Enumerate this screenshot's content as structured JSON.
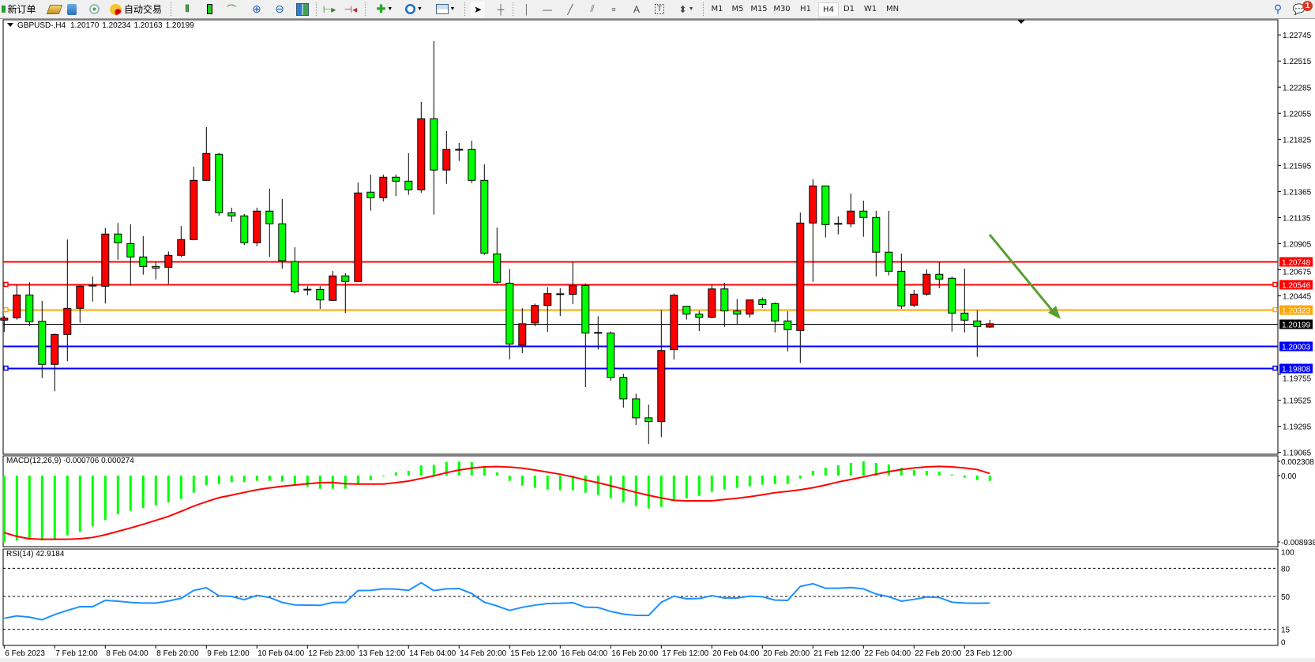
{
  "toolbar": {
    "new_order_label": "新订单",
    "auto_trading_label": "自动交易",
    "icons": [
      "new-order-icon",
      "history-center-icon",
      "market-watch-icon",
      "signals-icon",
      "auto-trading-icon",
      "bar-chart-icon",
      "candlestick-icon",
      "line-chart-icon",
      "zoom-in-icon",
      "zoom-out-icon",
      "tile-windows-icon",
      "auto-scroll-icon",
      "chart-shift-icon",
      "indicators-icon",
      "periods-icon",
      "templates-icon",
      "cursor-icon",
      "crosshair-icon",
      "vertical-line-icon",
      "horizontal-line-icon",
      "trendline-icon",
      "equidistant-channel-icon",
      "fibonacci-icon",
      "text-icon",
      "text-label-icon",
      "shapes-icon",
      "search-icon",
      "notifications-icon"
    ],
    "timeframes": [
      "M1",
      "M5",
      "M15",
      "M30",
      "H1",
      "H4",
      "D1",
      "W1",
      "MN"
    ],
    "active_timeframe": "H4",
    "notification_count": "1",
    "text_tool_label": "A",
    "label_tool_label": "T"
  },
  "chart_header": {
    "symbol": "GBPUSD-,H4",
    "open": "1.20170",
    "high": "1.20234",
    "low": "1.20163",
    "close": "1.20199"
  },
  "colors": {
    "bull": "#ff0000",
    "bear": "#00ff00",
    "macd_hist": "#00ff00",
    "macd_signal": "#ff0000",
    "rsi": "#1e90ff",
    "arrow": "#5a9e32"
  },
  "chart_data": {
    "type": "candlestick",
    "price_ticks": [
      "1.22745",
      "1.22515",
      "1.22285",
      "1.22055",
      "1.21825",
      "1.21595",
      "1.21365",
      "1.21135",
      "1.20905",
      "1.20675",
      "1.20445",
      "1.19755",
      "1.19525",
      "1.19295",
      "1.19065"
    ],
    "time_labels": [
      "6 Feb 2023",
      "7 Feb 12:00",
      "8 Feb 04:00",
      "8 Feb 20:00",
      "9 Feb 12:00",
      "10 Feb 04:00",
      "12 Feb 23:00",
      "13 Feb 12:00",
      "14 Feb 04:00",
      "14 Feb 20:00",
      "15 Feb 12:00",
      "16 Feb 04:00",
      "16 Feb 20:00",
      "17 Feb 12:00",
      "20 Feb 04:00",
      "20 Feb 20:00",
      "21 Feb 12:00",
      "22 Feb 04:00",
      "22 Feb 20:00",
      "23 Feb 12:00"
    ],
    "ohlc": [
      [
        1.20231,
        1.20268,
        1.20128,
        1.20249
      ],
      [
        1.20252,
        1.20541,
        1.20235,
        1.20453
      ],
      [
        1.20453,
        1.20565,
        1.20179,
        1.20217
      ],
      [
        1.20221,
        1.204,
        1.1972,
        1.19841
      ],
      [
        1.19841,
        1.20112,
        1.19604,
        1.20105
      ],
      [
        1.20105,
        1.20941,
        1.19869,
        1.20335
      ],
      [
        1.20335,
        1.20539,
        1.20207,
        1.2053
      ],
      [
        1.20535,
        1.20616,
        1.20395,
        1.20535
      ],
      [
        1.2053,
        1.21045,
        1.20377,
        1.2099
      ],
      [
        1.2099,
        1.21087,
        1.20764,
        1.20913
      ],
      [
        1.20906,
        1.21075,
        1.20534,
        1.20788
      ],
      [
        1.20788,
        1.20971,
        1.20632,
        1.20704
      ],
      [
        1.20704,
        1.20741,
        1.2059,
        1.2069
      ],
      [
        1.20697,
        1.20836,
        1.20551,
        1.20802
      ],
      [
        1.20802,
        1.21061,
        1.20785,
        1.20941
      ],
      [
        1.20941,
        1.21584,
        1.20935,
        1.21463
      ],
      [
        1.21463,
        1.21932,
        1.21456,
        1.217
      ],
      [
        1.21693,
        1.21705,
        1.2115,
        1.21178
      ],
      [
        1.21178,
        1.21222,
        1.21098,
        1.2115
      ],
      [
        1.2115,
        1.21166,
        1.20892,
        1.20913
      ],
      [
        1.20913,
        1.21222,
        1.20882,
        1.21192
      ],
      [
        1.21192,
        1.21389,
        1.2079,
        1.2108
      ],
      [
        1.2108,
        1.21298,
        1.20685,
        1.20755
      ],
      [
        1.20748,
        1.20873,
        1.20465,
        1.20481
      ],
      [
        1.205,
        1.20532,
        1.20451,
        1.20496
      ],
      [
        1.20502,
        1.20532,
        1.2033,
        1.20409
      ],
      [
        1.20405,
        1.20664,
        1.204,
        1.20621
      ],
      [
        1.20621,
        1.20644,
        1.20295,
        1.20572
      ],
      [
        1.20572,
        1.21444,
        1.20568,
        1.21352
      ],
      [
        1.21359,
        1.21514,
        1.21196,
        1.2131
      ],
      [
        1.2131,
        1.21514,
        1.21277,
        1.21491
      ],
      [
        1.21491,
        1.21514,
        1.21326,
        1.21456
      ],
      [
        1.21456,
        1.21702,
        1.21335,
        1.2138
      ],
      [
        1.2138,
        1.22155,
        1.21354,
        1.22006
      ],
      [
        1.22006,
        1.22691,
        1.21161,
        1.21554
      ],
      [
        1.21554,
        1.21897,
        1.21433,
        1.21735
      ],
      [
        1.21733,
        1.21793,
        1.21634,
        1.21728
      ],
      [
        1.21735,
        1.21813,
        1.21439,
        1.21463
      ],
      [
        1.21463,
        1.21604,
        1.20806,
        1.20822
      ],
      [
        1.20815,
        1.21047,
        1.20551,
        1.20565
      ],
      [
        1.20557,
        1.20682,
        1.19885,
        1.2002
      ],
      [
        1.20011,
        1.20336,
        1.1994,
        1.20199
      ],
      [
        1.20206,
        1.20376,
        1.20176,
        1.2036
      ],
      [
        1.2036,
        1.20522,
        1.20128,
        1.20465
      ],
      [
        1.2046,
        1.20513,
        1.20268,
        1.2046
      ],
      [
        1.20458,
        1.20743,
        1.20371,
        1.20536
      ],
      [
        1.20536,
        1.20555,
        1.19641,
        1.20117
      ],
      [
        1.20119,
        1.20265,
        1.19971,
        1.20115
      ],
      [
        1.20117,
        1.20131,
        1.19695,
        1.19726
      ],
      [
        1.19726,
        1.19759,
        1.1946,
        1.19537
      ],
      [
        1.19537,
        1.19582,
        1.19307,
        1.1937
      ],
      [
        1.1937,
        1.19486,
        1.1914,
        1.19337
      ],
      [
        1.19337,
        1.20319,
        1.192,
        1.19963
      ],
      [
        1.19971,
        1.20465,
        1.19883,
        1.20451
      ],
      [
        1.20353,
        1.20356,
        1.20237,
        1.20284
      ],
      [
        1.20284,
        1.20312,
        1.20135,
        1.20256
      ],
      [
        1.20256,
        1.20536,
        1.20247,
        1.20506
      ],
      [
        1.20506,
        1.2056,
        1.20171,
        1.20312
      ],
      [
        1.20312,
        1.20418,
        1.20194,
        1.20284
      ],
      [
        1.20284,
        1.20412,
        1.20254,
        1.20409
      ],
      [
        1.2041,
        1.2043,
        1.20338,
        1.20369
      ],
      [
        1.20377,
        1.20386,
        1.20123,
        1.20224
      ],
      [
        1.20224,
        1.20309,
        1.19956,
        1.20147
      ],
      [
        1.2014,
        1.2118,
        1.19852,
        1.21087
      ],
      [
        1.21087,
        1.21472,
        1.20569,
        1.21414
      ],
      [
        1.21414,
        1.21418,
        1.20959,
        1.21073
      ],
      [
        1.2108,
        1.21145,
        1.20987,
        1.21075
      ],
      [
        1.2108,
        1.21347,
        1.2105,
        1.21192
      ],
      [
        1.21192,
        1.21284,
        1.20966,
        1.21136
      ],
      [
        1.21136,
        1.21194,
        1.20616,
        1.2083
      ],
      [
        1.2083,
        1.21194,
        1.20625,
        1.20662
      ],
      [
        1.20662,
        1.20818,
        1.2033,
        1.20356
      ],
      [
        1.20363,
        1.20497,
        1.20346,
        1.2046
      ],
      [
        1.2046,
        1.20678,
        1.20444,
        1.20635
      ],
      [
        1.20635,
        1.20741,
        1.20513,
        1.20593
      ],
      [
        1.206,
        1.20616,
        1.2013,
        1.20293
      ],
      [
        1.20293,
        1.20685,
        1.20123,
        1.20231
      ],
      [
        1.20224,
        1.20318,
        1.19908,
        1.20175
      ],
      [
        1.2017,
        1.20234,
        1.20163,
        1.20199
      ]
    ],
    "price_lines": [
      {
        "value": "1.20748",
        "color": "#ff0000",
        "marker": false
      },
      {
        "value": "1.20546",
        "color": "#ff0000",
        "marker": true
      },
      {
        "value": "1.20323",
        "color": "#ffa500",
        "marker": true
      },
      {
        "value": "1.20199",
        "color": "#000000",
        "marker": false
      },
      {
        "value": "1.20003",
        "color": "#0000ff",
        "marker": false
      },
      {
        "value": "1.19808",
        "color": "#0000ff",
        "marker": true
      }
    ],
    "macd": {
      "label": "MACD(12,26,9) -0.000706 0.000274",
      "axis_labels": [
        "0.002308",
        "0.00",
        "-0.008938"
      ],
      "histogram": [
        -0.00894,
        -0.00869,
        -0.00859,
        -0.00869,
        -0.00848,
        -0.00799,
        -0.0075,
        -0.00679,
        -0.00595,
        -0.00517,
        -0.00472,
        -0.00433,
        -0.00398,
        -0.00359,
        -0.00313,
        -0.00229,
        -0.0013,
        -0.00113,
        -0.00088,
        -0.00088,
        -0.0007,
        -0.0007,
        -0.00081,
        -0.0012,
        -0.00148,
        -0.00176,
        -0.00176,
        -0.00176,
        -0.00113,
        -0.00063,
        -3e-05,
        0.00042,
        0.00063,
        0.00137,
        0.00144,
        0.0018,
        0.00187,
        0.0018,
        0.00127,
        0.00042,
        -0.0007,
        -0.00134,
        -0.00165,
        -0.00187,
        -0.00197,
        -0.00197,
        -0.00229,
        -0.0026,
        -0.00303,
        -0.00359,
        -0.00408,
        -0.0044,
        -0.00419,
        -0.00324,
        -0.00303,
        -0.00271,
        -0.00218,
        -0.00187,
        -0.00165,
        -0.00144,
        -0.00123,
        -0.00113,
        -0.00113,
        -0.00039,
        0.00063,
        0.00106,
        0.00137,
        0.00169,
        0.0019,
        0.00169,
        0.00148,
        0.00106,
        0.00074,
        0.00063,
        0.00053,
        0.00014,
        -0.00028,
        -0.0006,
        -0.000706
      ],
      "signal": [
        -0.00764,
        -0.00813,
        -0.00845,
        -0.00852,
        -0.00852,
        -0.00852,
        -0.00845,
        -0.00827,
        -0.00792,
        -0.00746,
        -0.007,
        -0.00651,
        -0.00599,
        -0.00546,
        -0.00479,
        -0.00408,
        -0.00349,
        -0.00296,
        -0.00261,
        -0.00225,
        -0.0019,
        -0.00165,
        -0.00144,
        -0.00127,
        -0.00109,
        -0.00095,
        -0.00092,
        -0.00109,
        -0.00113,
        -0.00113,
        -0.00113,
        -0.00095,
        -0.00074,
        -0.00039,
        -4e-05,
        0.00039,
        0.00074,
        0.00099,
        0.00116,
        0.0012,
        0.00113,
        0.00099,
        0.00074,
        0.00046,
        0.00018,
        -0.00018,
        -0.0006,
        -0.00095,
        -0.00137,
        -0.0018,
        -0.00225,
        -0.00264,
        -0.00299,
        -0.00331,
        -0.00338,
        -0.00338,
        -0.00338,
        -0.0032,
        -0.00303,
        -0.00282,
        -0.00257,
        -0.00229,
        -0.00211,
        -0.0019,
        -0.00162,
        -0.00127,
        -0.00085,
        -0.00053,
        -0.00018,
        0.00018,
        0.00053,
        0.00081,
        0.00102,
        0.00116,
        0.00123,
        0.00116,
        0.00102,
        0.00081,
        0.000274
      ]
    },
    "rsi": {
      "label": "RSI(14) 42.9184",
      "levels": [
        "80",
        "50",
        "15"
      ],
      "axis_labels": [
        "100",
        "80",
        "50",
        "15",
        "0"
      ],
      "values": [
        26.7,
        29.3,
        27.9,
        25.1,
        30.7,
        35.1,
        39.1,
        39.1,
        45.8,
        45.0,
        43.6,
        43.0,
        43.0,
        45.2,
        48.0,
        56.4,
        59.3,
        50.6,
        50.0,
        46.6,
        51.1,
        48.9,
        43.6,
        41.0,
        40.7,
        40.5,
        43.6,
        43.6,
        56.2,
        56.4,
        58.1,
        57.8,
        56.4,
        64.6,
        56.2,
        58.1,
        58.4,
        53.1,
        43.8,
        39.9,
        35.1,
        38.5,
        40.7,
        42.4,
        42.7,
        43.3,
        38.5,
        38.2,
        34.0,
        31.2,
        29.8,
        29.8,
        43.8,
        50.3,
        47.5,
        47.8,
        50.8,
        48.3,
        48.3,
        50.3,
        49.7,
        46.1,
        45.8,
        60.7,
        63.5,
        58.7,
        58.7,
        59.5,
        58.1,
        52.5,
        49.7,
        45.0,
        46.9,
        49.4,
        48.9,
        43.8,
        43.0,
        42.7,
        42.9184
      ]
    }
  }
}
